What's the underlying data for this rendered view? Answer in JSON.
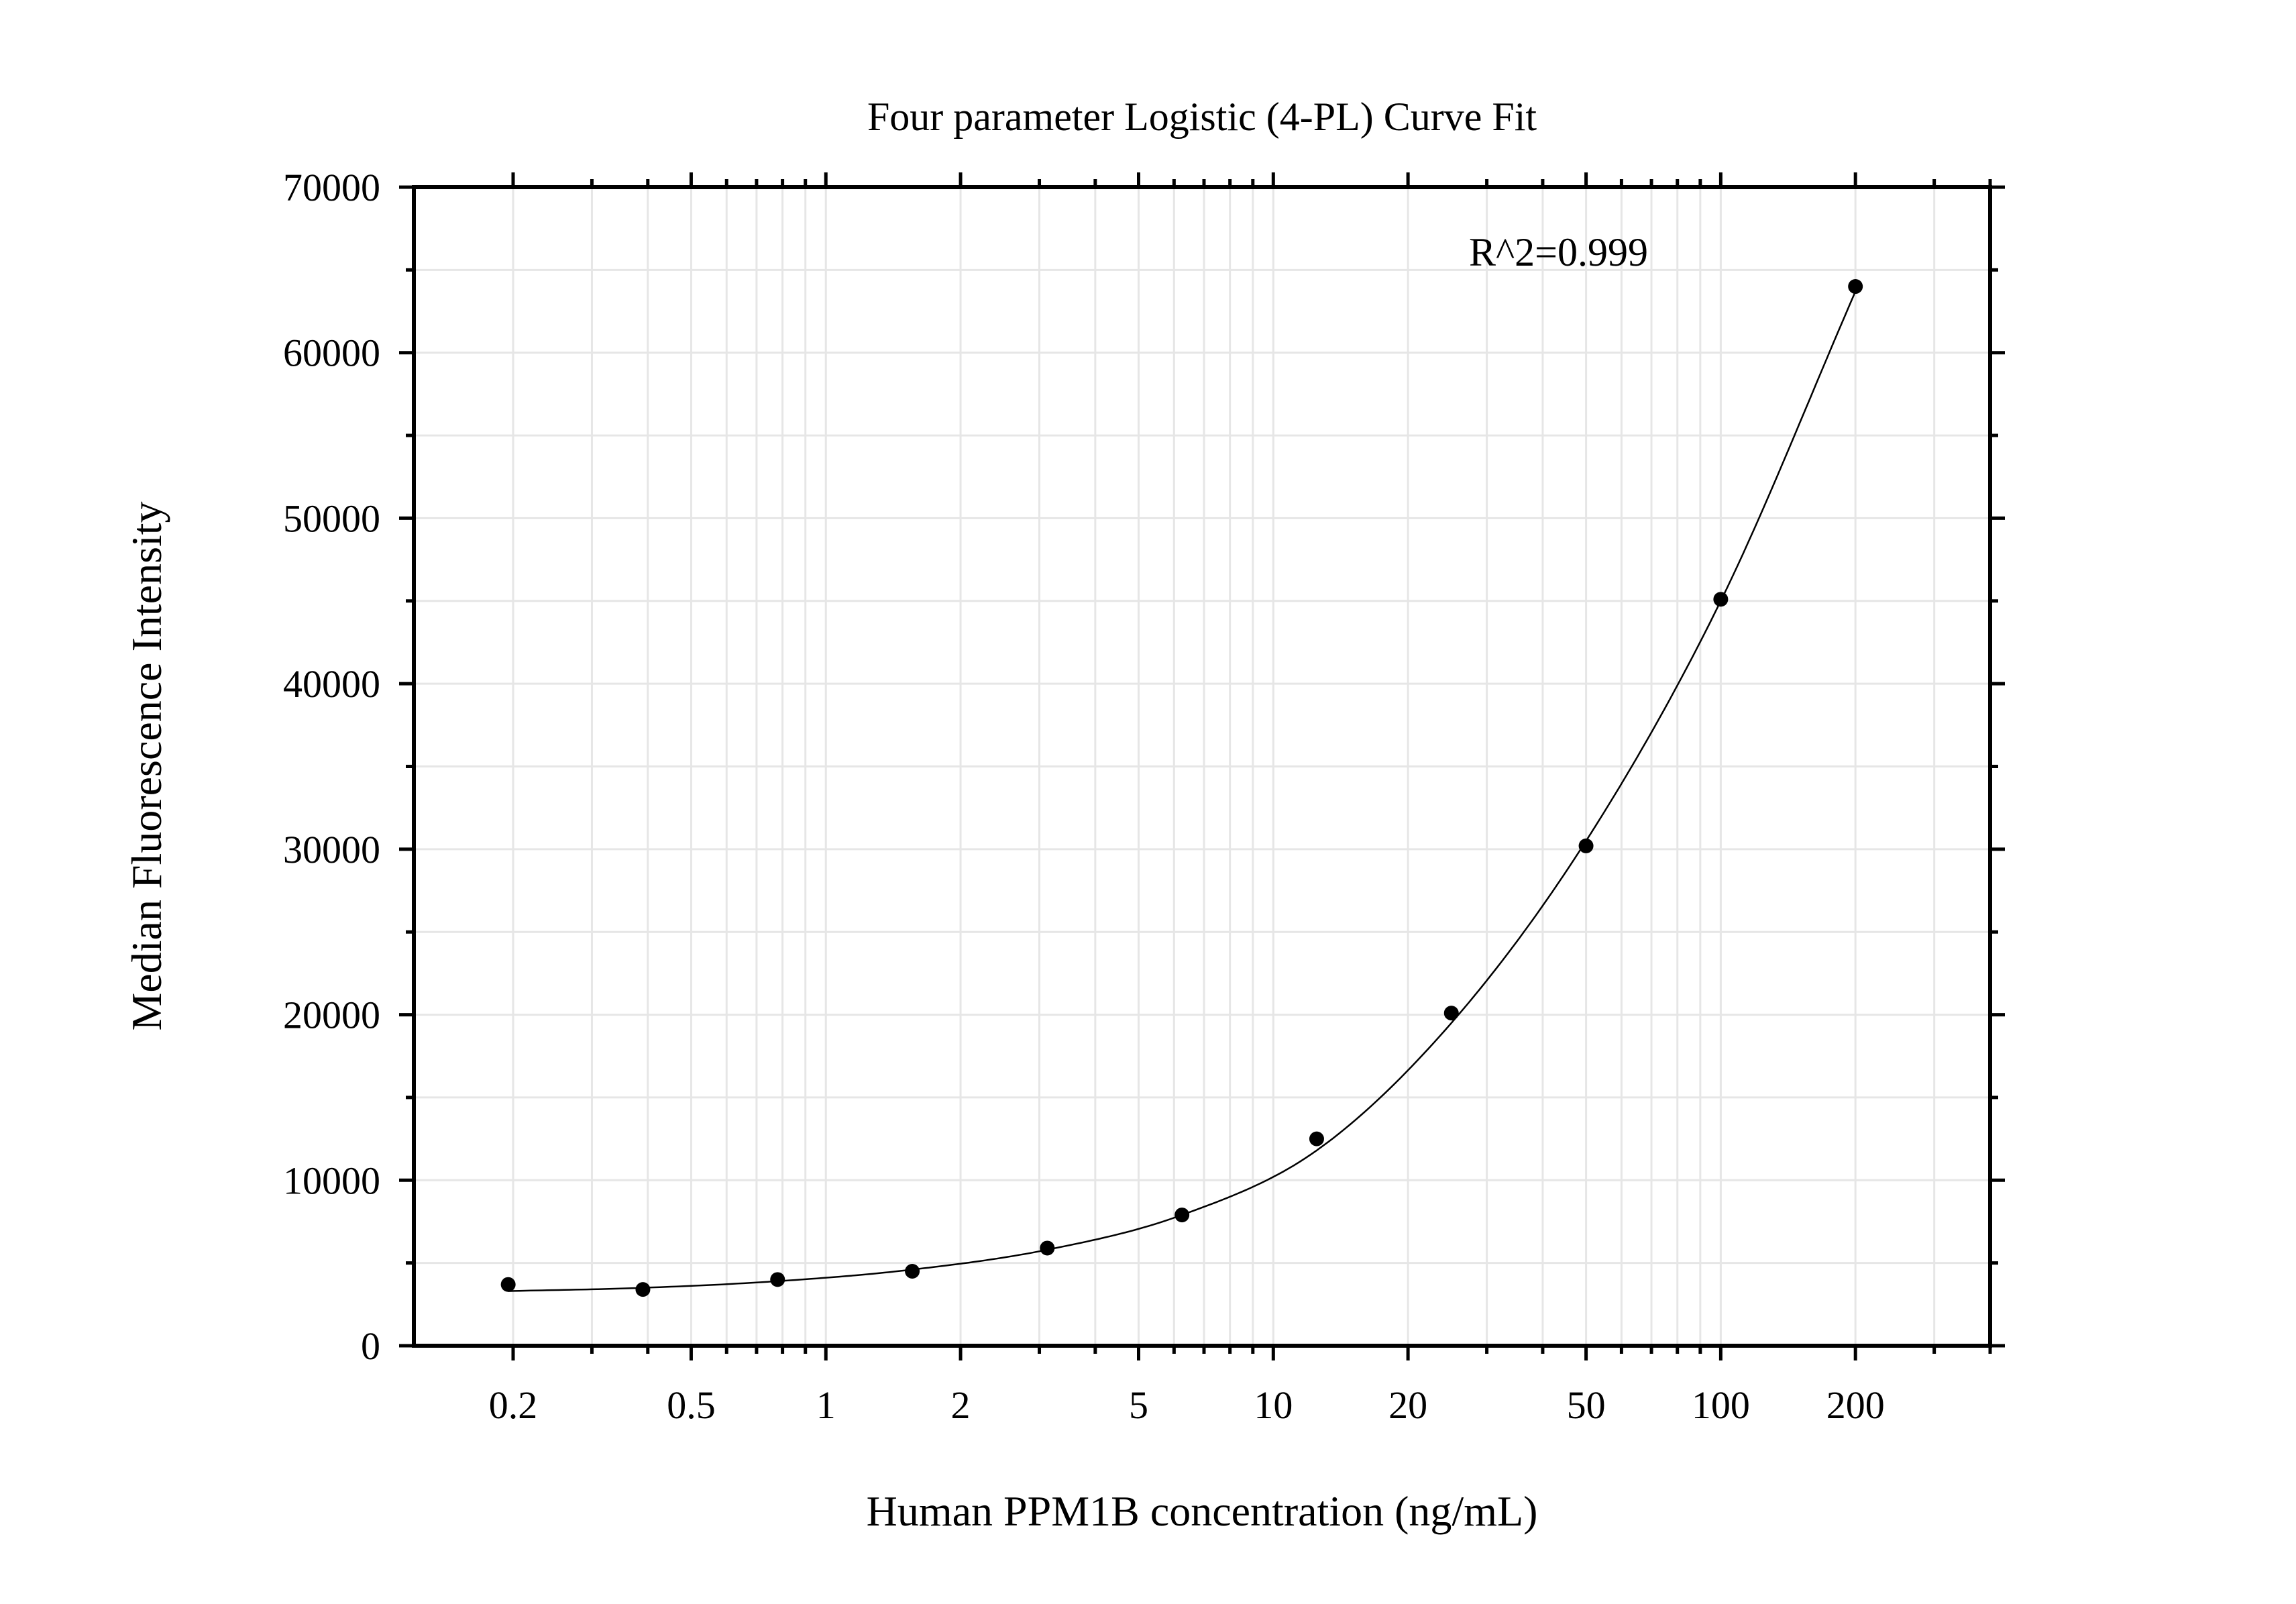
{
  "chart_data": {
    "type": "scatter",
    "title": "Four parameter Logistic (4-PL) Curve Fit",
    "xlabel": "Human PPM1B concentration (ng/mL)",
    "ylabel": "Median Fluorescence Intensity",
    "x_scale": "log",
    "xlim": [
      0.12,
      400
    ],
    "ylim": [
      0,
      70000
    ],
    "x_ticks": [
      0.2,
      0.5,
      1,
      2,
      5,
      10,
      20,
      50,
      100,
      200
    ],
    "x_tick_labels": [
      "0.2",
      "0.5",
      "1",
      "2",
      "5",
      "10",
      "20",
      "50",
      "100",
      "200"
    ],
    "y_ticks": [
      0,
      10000,
      20000,
      30000,
      40000,
      50000,
      60000,
      70000
    ],
    "y_tick_labels": [
      "0",
      "10000",
      "20000",
      "30000",
      "40000",
      "50000",
      "60000",
      "70000"
    ],
    "grid": true,
    "annotation": "R^2=0.999",
    "points": {
      "x": [
        0.195,
        0.39,
        0.78,
        1.56,
        3.125,
        6.25,
        12.5,
        25,
        50,
        100,
        200
      ],
      "y": [
        3700,
        3400,
        4000,
        4500,
        5900,
        7900,
        12500,
        20100,
        30200,
        45100,
        64000
      ]
    },
    "fit_curve": {
      "x": [
        0.195,
        0.39,
        0.78,
        1.56,
        3.125,
        6.25,
        12.5,
        25,
        50,
        100,
        200
      ],
      "y": [
        3300,
        3500,
        3900,
        4600,
        5800,
        7900,
        11800,
        19500,
        30500,
        45000,
        63700
      ]
    },
    "colors": {
      "points": "#000000",
      "curve": "#000000",
      "grid": "#e6e6e6",
      "frame": "#000000"
    }
  }
}
